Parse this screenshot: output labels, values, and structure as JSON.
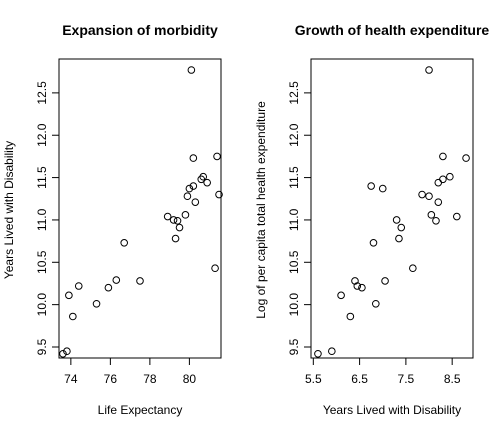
{
  "chart_data": [
    {
      "type": "scatter",
      "title": "Expansion of morbidity",
      "xlabel": "Life Expectancy",
      "ylabel": "Years Lived with Disability",
      "xlim": [
        73.4,
        81.6
      ],
      "ylim": [
        9.37,
        12.9
      ],
      "xticks": [
        74,
        76,
        78,
        80
      ],
      "yticks": [
        9.5,
        10.0,
        10.5,
        11.0,
        11.5,
        12.0,
        12.5
      ],
      "xtick_labels": [
        "74",
        "76",
        "78",
        "80"
      ],
      "ytick_labels": [
        "9.5",
        "10.0",
        "10.5",
        "11.0",
        "11.5",
        "12.0",
        "12.5"
      ],
      "grid": false,
      "legend": "none",
      "points": [
        {
          "x": 73.6,
          "y": 9.42
        },
        {
          "x": 73.8,
          "y": 9.45
        },
        {
          "x": 73.9,
          "y": 10.11
        },
        {
          "x": 74.1,
          "y": 9.86
        },
        {
          "x": 74.4,
          "y": 10.22
        },
        {
          "x": 75.3,
          "y": 10.01
        },
        {
          "x": 75.9,
          "y": 10.2
        },
        {
          "x": 76.3,
          "y": 10.29
        },
        {
          "x": 76.7,
          "y": 10.73
        },
        {
          "x": 77.5,
          "y": 10.28
        },
        {
          "x": 78.9,
          "y": 11.04
        },
        {
          "x": 79.2,
          "y": 11.0
        },
        {
          "x": 79.3,
          "y": 10.78
        },
        {
          "x": 79.4,
          "y": 10.99
        },
        {
          "x": 79.5,
          "y": 10.91
        },
        {
          "x": 79.8,
          "y": 11.06
        },
        {
          "x": 79.9,
          "y": 11.28
        },
        {
          "x": 80.0,
          "y": 11.37
        },
        {
          "x": 80.1,
          "y": 12.77
        },
        {
          "x": 80.2,
          "y": 11.73
        },
        {
          "x": 80.2,
          "y": 11.4
        },
        {
          "x": 80.3,
          "y": 11.21
        },
        {
          "x": 80.6,
          "y": 11.48
        },
        {
          "x": 80.7,
          "y": 11.51
        },
        {
          "x": 80.9,
          "y": 11.44
        },
        {
          "x": 81.3,
          "y": 10.43
        },
        {
          "x": 81.4,
          "y": 11.75
        },
        {
          "x": 81.5,
          "y": 11.3
        }
      ]
    },
    {
      "type": "scatter",
      "title": "Growth of health expenditure",
      "xlabel": "Years Lived with Disability",
      "ylabel": "Log of per capita total health expenditure",
      "xlim": [
        5.45,
        8.95
      ],
      "ylim": [
        9.37,
        12.9
      ],
      "xticks": [
        5.5,
        6.5,
        7.5,
        8.5
      ],
      "yticks": [
        9.5,
        10.0,
        10.5,
        11.0,
        11.5,
        12.0,
        12.5
      ],
      "xtick_labels": [
        "5.5",
        "6.5",
        "7.5",
        "8.5"
      ],
      "ytick_labels": [
        "9.5",
        "10.0",
        "10.5",
        "11.0",
        "11.5",
        "12.0",
        "12.5"
      ],
      "grid": false,
      "legend": "none",
      "points": [
        {
          "x": 5.6,
          "y": 9.42
        },
        {
          "x": 5.9,
          "y": 9.45
        },
        {
          "x": 6.1,
          "y": 10.11
        },
        {
          "x": 6.3,
          "y": 9.86
        },
        {
          "x": 6.4,
          "y": 10.28
        },
        {
          "x": 6.45,
          "y": 10.22
        },
        {
          "x": 6.55,
          "y": 10.2
        },
        {
          "x": 6.75,
          "y": 11.4
        },
        {
          "x": 6.8,
          "y": 10.73
        },
        {
          "x": 6.85,
          "y": 10.01
        },
        {
          "x": 7.0,
          "y": 11.37
        },
        {
          "x": 7.05,
          "y": 10.28
        },
        {
          "x": 7.3,
          "y": 11.0
        },
        {
          "x": 7.35,
          "y": 10.78
        },
        {
          "x": 7.4,
          "y": 10.91
        },
        {
          "x": 7.65,
          "y": 10.43
        },
        {
          "x": 7.85,
          "y": 11.3
        },
        {
          "x": 8.0,
          "y": 12.77
        },
        {
          "x": 8.0,
          "y": 11.28
        },
        {
          "x": 8.05,
          "y": 11.06
        },
        {
          "x": 8.15,
          "y": 10.99
        },
        {
          "x": 8.2,
          "y": 11.44
        },
        {
          "x": 8.2,
          "y": 11.21
        },
        {
          "x": 8.3,
          "y": 11.75
        },
        {
          "x": 8.3,
          "y": 11.48
        },
        {
          "x": 8.45,
          "y": 11.51
        },
        {
          "x": 8.6,
          "y": 11.04
        },
        {
          "x": 8.8,
          "y": 11.73
        }
      ]
    }
  ]
}
